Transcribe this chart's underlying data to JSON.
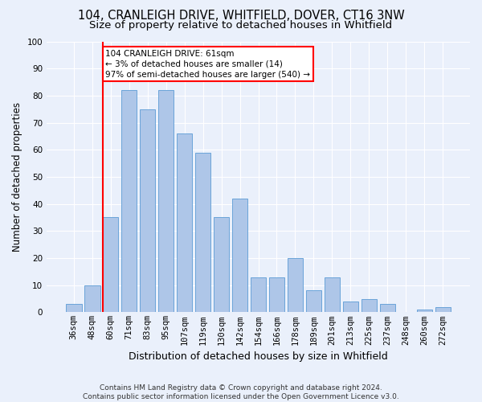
{
  "title1": "104, CRANLEIGH DRIVE, WHITFIELD, DOVER, CT16 3NW",
  "title2": "Size of property relative to detached houses in Whitfield",
  "xlabel": "Distribution of detached houses by size in Whitfield",
  "ylabel": "Number of detached properties",
  "categories": [
    "36sqm",
    "48sqm",
    "60sqm",
    "71sqm",
    "83sqm",
    "95sqm",
    "107sqm",
    "119sqm",
    "130sqm",
    "142sqm",
    "154sqm",
    "166sqm",
    "178sqm",
    "189sqm",
    "201sqm",
    "213sqm",
    "225sqm",
    "237sqm",
    "248sqm",
    "260sqm",
    "272sqm"
  ],
  "values": [
    3,
    10,
    35,
    82,
    75,
    82,
    66,
    59,
    35,
    42,
    13,
    13,
    20,
    8,
    13,
    4,
    5,
    3,
    0,
    1,
    2
  ],
  "bar_color": "#aec6e8",
  "bar_edge_color": "#5b9bd5",
  "annotation_box_text": "104 CRANLEIGH DRIVE: 61sqm\n← 3% of detached houses are smaller (14)\n97% of semi-detached houses are larger (540) →",
  "annotation_box_color": "white",
  "annotation_box_edge_color": "red",
  "vline_color": "red",
  "background_color": "#eaf0fb",
  "grid_color": "white",
  "footer1": "Contains HM Land Registry data © Crown copyright and database right 2024.",
  "footer2": "Contains public sector information licensed under the Open Government Licence v3.0.",
  "ylim": [
    0,
    100
  ],
  "title1_fontsize": 10.5,
  "title2_fontsize": 9.5,
  "xlabel_fontsize": 9,
  "ylabel_fontsize": 8.5,
  "tick_fontsize": 7.5,
  "annot_fontsize": 7.5,
  "footer_fontsize": 6.5
}
